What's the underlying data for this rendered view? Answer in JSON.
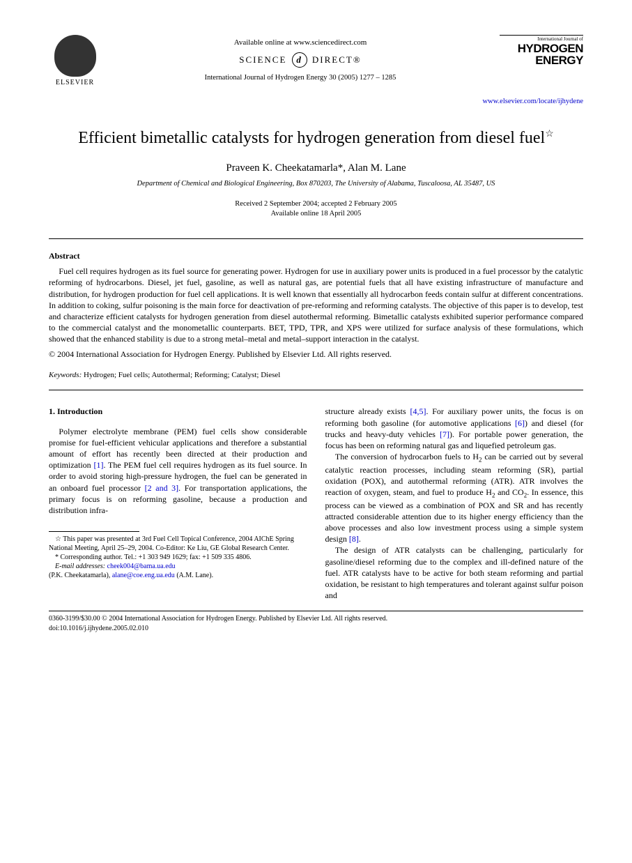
{
  "header": {
    "elsevier": "ELSEVIER",
    "available": "Available online at www.sciencedirect.com",
    "sd_left": "SCIENCE",
    "sd_right": "DIRECT®",
    "journal_ref": "International Journal of Hydrogen Energy 30 (2005) 1277 – 1285",
    "journal_top": "International Journal of",
    "journal_line1": "HYDROGEN",
    "journal_line2": "ENERGY",
    "journal_link": "www.elsevier.com/locate/ijhydene"
  },
  "title": {
    "text": "Efficient bimetallic catalysts for hydrogen generation from diesel fuel",
    "star": "☆"
  },
  "authors": "Praveen K. Cheekatamarla*, Alan M. Lane",
  "affiliation": "Department of Chemical and Biological Engineering, Box 870203, The University of Alabama, Tuscaloosa, AL 35487, US",
  "dates": {
    "received": "Received 2 September 2004; accepted 2 February 2005",
    "online": "Available online 18 April 2005"
  },
  "abstract": {
    "heading": "Abstract",
    "body": "Fuel cell requires hydrogen as its fuel source for generating power. Hydrogen for use in auxiliary power units is produced in a fuel processor by the catalytic reforming of hydrocarbons. Diesel, jet fuel, gasoline, as well as natural gas, are potential fuels that all have existing infrastructure of manufacture and distribution, for hydrogen production for fuel cell applications. It is well known that essentially all hydrocarbon feeds contain sulfur at different concentrations. In addition to coking, sulfur poisoning is the main force for deactivation of pre-reforming and reforming catalysts. The objective of this paper is to develop, test and characterize efficient catalysts for hydrogen generation from diesel autothermal reforming. Bimetallic catalysts exhibited superior performance compared to the commercial catalyst and the monometallic counterparts. BET, TPD, TPR, and XPS were utilized for surface analysis of these formulations, which showed that the enhanced stability is due to a strong metal–metal and metal–support interaction in the catalyst.",
    "copyright": "© 2004 International Association for Hydrogen Energy. Published by Elsevier Ltd. All rights reserved."
  },
  "keywords": {
    "label": "Keywords:",
    "list": "Hydrogen; Fuel cells; Autothermal; Reforming; Catalyst; Diesel"
  },
  "section1": {
    "heading": "1.  Introduction",
    "col1_p1a": "Polymer electrolyte membrane (PEM) fuel cells show considerable promise for fuel-efficient vehicular applications and therefore a substantial amount of effort has recently been directed at their production and optimization ",
    "cite1": "[1]",
    "col1_p1b": ". The PEM fuel cell requires hydrogen as its fuel source. In order to avoid storing high-pressure hydrogen, the fuel can be generated in an onboard fuel processor ",
    "cite23": "[2 and 3]",
    "col1_p1c": ". For transportation applications, the primary focus is on reforming gasoline, because a production and distribution infra-",
    "col2_p1a": "structure already exists ",
    "cite45": "[4,5]",
    "col2_p1b": ". For auxiliary power units, the focus is on reforming both gasoline (for automotive applications ",
    "cite6": "[6]",
    "col2_p1c": ") and diesel (for trucks and heavy-duty vehicles ",
    "cite7": "[7]",
    "col2_p1d": "). For portable power generation, the focus has been on reforming natural gas and liquefied petroleum gas.",
    "col2_p2a": "The conversion of hydrocarbon fuels to H",
    "col2_p2b": " can be carried out by several catalytic reaction processes, including steam reforming (SR), partial oxidation (POX), and autothermal reforming (ATR). ATR involves the reaction of oxygen, steam, and fuel to produce H",
    "col2_p2c": " and CO",
    "col2_p2d": ". In essence, this process can be viewed as a combination of POX and SR and has recently attracted considerable attention due to its higher energy efficiency than the above processes and also low investment process using a simple system design ",
    "cite8": "[8]",
    "col2_p2e": ".",
    "col2_p3": "The design of ATR catalysts can be challenging, particularly for gasoline/diesel reforming due to the complex and ill-defined nature of the fuel. ATR catalysts have to be active for both steam reforming and partial oxidation, be resistant to high temperatures and tolerant against sulfur poison and"
  },
  "footnotes": {
    "star": "☆ This paper was presented at 3rd Fuel Cell Topical Conference, 2004 AIChE Spring National Meeting, April 25–29, 2004. Co-Editor: Ke Liu, GE Global Research Center.",
    "corr": "* Corresponding author. Tel.: +1 303 949 1629; fax: +1 509 335 4806.",
    "email_label": "E-mail addresses:",
    "email1": "cheek004@bama.ua.edu",
    "email1_who": "(P.K. Cheekatamarla), ",
    "email2": "alane@coe.eng.ua.edu",
    "email2_who": " (A.M. Lane)."
  },
  "bottom": {
    "line1": "0360-3199/$30.00 © 2004 International Association for Hydrogen Energy. Published by Elsevier Ltd. All rights reserved.",
    "line2": "doi:10.1016/j.ijhydene.2005.02.010"
  }
}
